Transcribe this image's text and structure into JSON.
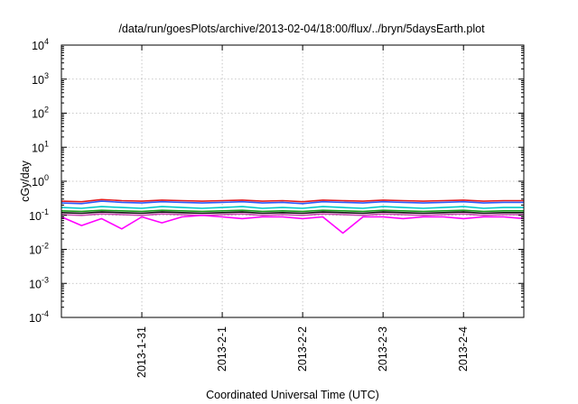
{
  "chart_data": {
    "type": "line",
    "title": "/data/run/goesPlots/archive/2013-02-04/18:00/flux/../bryn/5daysEarth.plot",
    "xlabel": "Coordinated Universal Time (UTC)",
    "ylabel": "cGy/day",
    "yscale": "log",
    "ylim_exponents": [
      -4,
      4
    ],
    "y_ticks": [
      {
        "base": "10",
        "exp": "-4"
      },
      {
        "base": "10",
        "exp": "-3"
      },
      {
        "base": "10",
        "exp": "-2"
      },
      {
        "base": "10",
        "exp": "-1"
      },
      {
        "base": "10",
        "exp": "0"
      },
      {
        "base": "10",
        "exp": "1"
      },
      {
        "base": "10",
        "exp": "2"
      },
      {
        "base": "10",
        "exp": "3"
      },
      {
        "base": "10",
        "exp": "4"
      }
    ],
    "xlim": [
      "2013-01-30 00:00",
      "2013-02-04 18:00"
    ],
    "x_ticks": [
      "2013-1-31",
      "2013-2-1",
      "2013-2-2",
      "2013-2-3",
      "2013-2-4"
    ],
    "grid": true,
    "x": [
      "2013-01-30 00:00",
      "2013-01-30 06:00",
      "2013-01-30 12:00",
      "2013-01-30 18:00",
      "2013-01-31 00:00",
      "2013-01-31 06:00",
      "2013-01-31 12:00",
      "2013-01-31 18:00",
      "2013-02-01 00:00",
      "2013-02-01 06:00",
      "2013-02-01 12:00",
      "2013-02-01 18:00",
      "2013-02-02 00:00",
      "2013-02-02 06:00",
      "2013-02-02 12:00",
      "2013-02-02 18:00",
      "2013-02-03 00:00",
      "2013-02-03 06:00",
      "2013-02-03 12:00",
      "2013-02-03 18:00",
      "2013-02-04 00:00",
      "2013-02-04 06:00",
      "2013-02-04 12:00",
      "2013-02-04 18:00"
    ],
    "series": [
      {
        "color": "#e41a1c",
        "values": [
          0.26,
          0.25,
          0.29,
          0.27,
          0.26,
          0.28,
          0.27,
          0.26,
          0.27,
          0.28,
          0.26,
          0.27,
          0.25,
          0.28,
          0.27,
          0.26,
          0.28,
          0.27,
          0.26,
          0.27,
          0.28,
          0.26,
          0.27,
          0.27
        ]
      },
      {
        "color": "#2b5bff",
        "values": [
          0.23,
          0.22,
          0.26,
          0.24,
          0.23,
          0.25,
          0.24,
          0.23,
          0.24,
          0.25,
          0.23,
          0.24,
          0.22,
          0.25,
          0.24,
          0.23,
          0.25,
          0.24,
          0.23,
          0.24,
          0.25,
          0.23,
          0.24,
          0.24
        ]
      },
      {
        "color": "#00c8c8",
        "values": [
          0.17,
          0.16,
          0.18,
          0.17,
          0.16,
          0.18,
          0.17,
          0.16,
          0.17,
          0.18,
          0.16,
          0.17,
          0.16,
          0.18,
          0.17,
          0.16,
          0.18,
          0.17,
          0.16,
          0.17,
          0.18,
          0.16,
          0.17,
          0.17
        ]
      },
      {
        "color": "#1a9a1a",
        "values": [
          0.135,
          0.13,
          0.14,
          0.135,
          0.13,
          0.14,
          0.135,
          0.13,
          0.135,
          0.14,
          0.13,
          0.135,
          0.13,
          0.14,
          0.135,
          0.13,
          0.14,
          0.135,
          0.13,
          0.135,
          0.14,
          0.13,
          0.135,
          0.135
        ]
      },
      {
        "color": "#111111",
        "values": [
          0.12,
          0.115,
          0.125,
          0.12,
          0.115,
          0.125,
          0.12,
          0.115,
          0.12,
          0.125,
          0.115,
          0.12,
          0.115,
          0.125,
          0.12,
          0.115,
          0.125,
          0.12,
          0.115,
          0.12,
          0.125,
          0.115,
          0.12,
          0.12
        ]
      },
      {
        "color": "#c84ab0",
        "values": [
          0.105,
          0.1,
          0.11,
          0.105,
          0.1,
          0.11,
          0.105,
          0.1,
          0.105,
          0.11,
          0.1,
          0.105,
          0.1,
          0.11,
          0.105,
          0.1,
          0.11,
          0.105,
          0.1,
          0.105,
          0.11,
          0.1,
          0.105,
          0.105
        ]
      },
      {
        "color": "#ff00ff",
        "values": [
          0.09,
          0.05,
          0.08,
          0.04,
          0.09,
          0.06,
          0.09,
          0.1,
          0.09,
          0.08,
          0.09,
          0.09,
          0.08,
          0.09,
          0.03,
          0.09,
          0.09,
          0.08,
          0.09,
          0.09,
          0.08,
          0.09,
          0.09,
          0.08
        ]
      }
    ]
  }
}
